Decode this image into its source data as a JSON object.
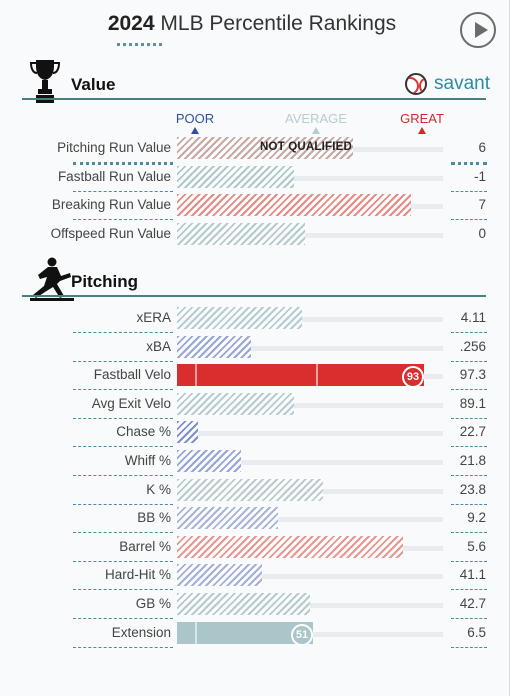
{
  "header": {
    "year": "2024",
    "title": "MLB Percentile Rankings"
  },
  "brand": {
    "name": "savant"
  },
  "legend": {
    "poor": "POOR",
    "average": "AVERAGE",
    "great": "GREAT",
    "colors": {
      "poor": "#2f4f9e",
      "average": "#b7cdd2",
      "great": "#d02b2b"
    }
  },
  "sections": {
    "value": {
      "label": "Value",
      "icon": "trophy-icon",
      "rows": [
        {
          "name": "Pitching Run Value",
          "value": "6",
          "percentile": 66,
          "qualified": false,
          "status": "NOT QUALIFIED",
          "color": "#c9a6a0",
          "dotted": true
        },
        {
          "name": "Fastball Run Value",
          "value": "-1",
          "percentile": 44,
          "color": "#aec8cd"
        },
        {
          "name": "Breaking Run Value",
          "value": "7",
          "percentile": 88,
          "color": "#e58a84"
        },
        {
          "name": "Offspeed Run Value",
          "value": "0",
          "percentile": 48,
          "color": "#b4cacd"
        }
      ]
    },
    "pitching": {
      "label": "Pitching",
      "icon": "pitcher-icon",
      "rows": [
        {
          "name": "xERA",
          "value": "4.11",
          "percentile": 47,
          "color": "#b4ccd2"
        },
        {
          "name": "xBA",
          "value": ".256",
          "percentile": 28,
          "color": "#98a6d6"
        },
        {
          "name": "Fastball Velo",
          "value": "97.3",
          "percentile": 93,
          "color": "#d92e2e",
          "solid": true,
          "badge": "93"
        },
        {
          "name": "Avg Exit Velo",
          "value": "89.1",
          "percentile": 44,
          "color": "#b4ccd2"
        },
        {
          "name": "Chase %",
          "value": "22.7",
          "percentile": 8,
          "color": "#7f8ed0"
        },
        {
          "name": "Whiff %",
          "value": "21.8",
          "percentile": 24,
          "color": "#96a4d6"
        },
        {
          "name": "K %",
          "value": "23.8",
          "percentile": 55,
          "color": "#b8cbcd"
        },
        {
          "name": "BB %",
          "value": "9.2",
          "percentile": 38,
          "color": "#a8b3d8"
        },
        {
          "name": "Barrel %",
          "value": "5.6",
          "percentile": 85,
          "color": "#e8968f"
        },
        {
          "name": "Hard-Hit %",
          "value": "41.1",
          "percentile": 32,
          "color": "#a3afd8"
        },
        {
          "name": "GB %",
          "value": "42.7",
          "percentile": 50,
          "color": "#b4cacd"
        },
        {
          "name": "Extension",
          "value": "6.5",
          "percentile": 51,
          "color": "#aac6c8",
          "solid": true,
          "badge": "51"
        }
      ]
    }
  }
}
